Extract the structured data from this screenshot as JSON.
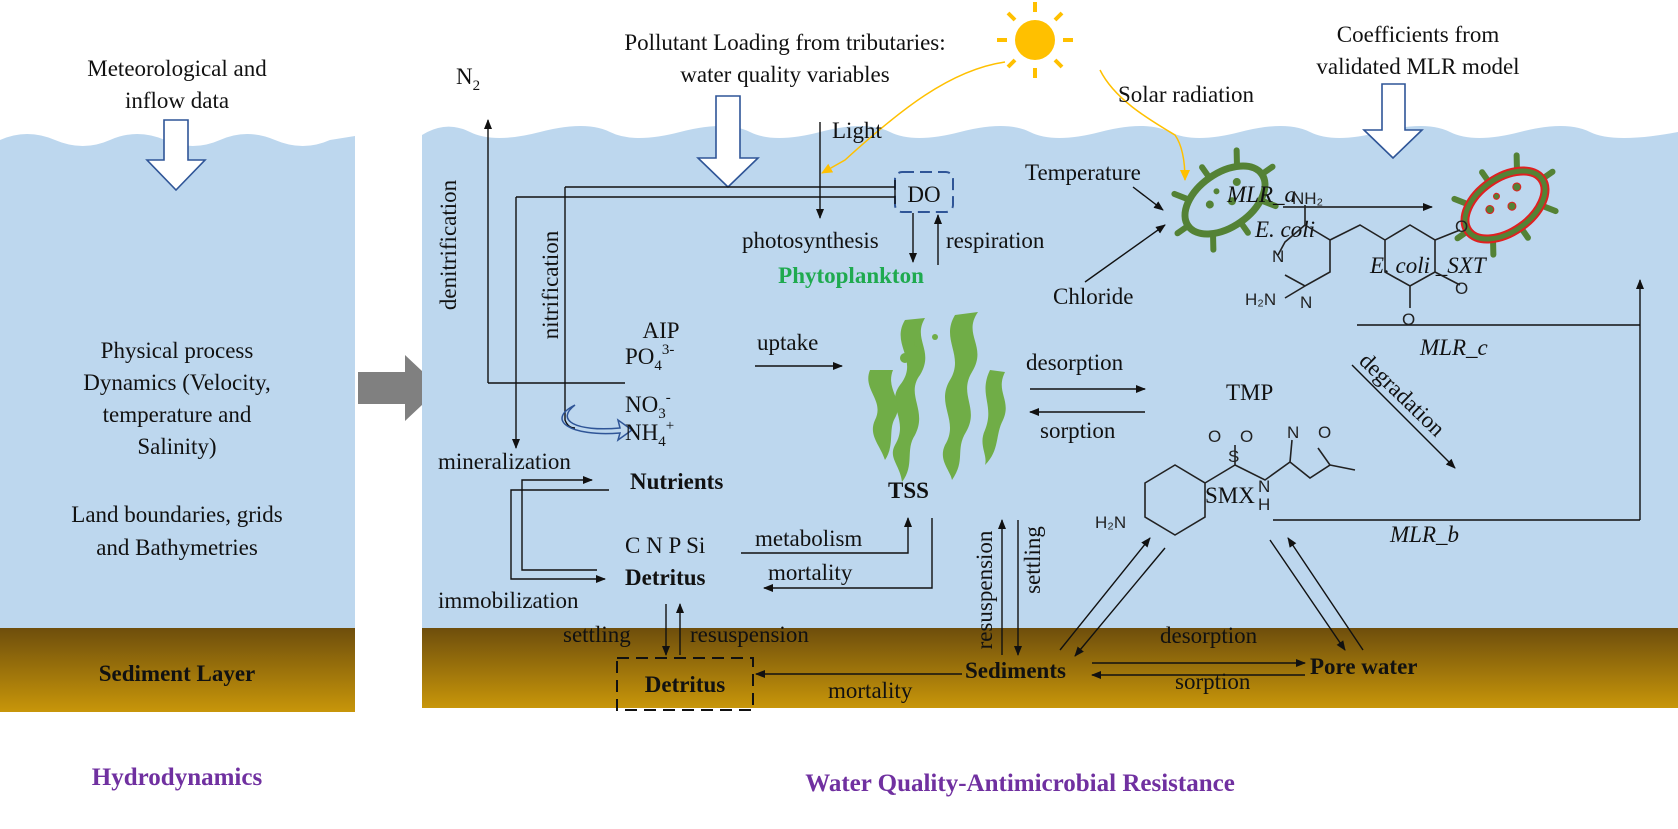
{
  "colors": {
    "water": "#bdd7ee",
    "sediment_top": "#6e4e0c",
    "sediment_bottom": "#c8960a",
    "title": "#7030a0",
    "phytoplankton": "#1faa4f",
    "ecoli": "#548235",
    "ecoli_sxt_outline": "#e02020",
    "sun": "#ffc000",
    "do_box": "#2f5597",
    "algae": "#70ad47"
  },
  "hydro": {
    "input_line1": "Meteorological and",
    "input_line2": "inflow data",
    "process_line1": "Physical process",
    "process_line2": "Dynamics (Velocity,",
    "process_line3": "temperature and",
    "process_line4": "Salinity)",
    "grid_line1": "Land boundaries, grids",
    "grid_line2": "and Bathymetries",
    "sediment": "Sediment Layer",
    "title": "Hydrodynamics"
  },
  "wq": {
    "title": "Water Quality-Antimicrobial Resistance",
    "loading_line1": "Pollutant Loading from tributaries:",
    "loading_line2": "water quality variables",
    "coef_line1": "Coefficients from",
    "coef_line2": "validated MLR model",
    "n2": "N",
    "n2_sub": "2",
    "solar": "Solar radiation",
    "light": "Light",
    "do": "DO",
    "photosynthesis": "photosynthesis",
    "respiration": "respiration",
    "phytoplankton": "Phytoplankton",
    "temperature": "Temperature",
    "chloride": "Chloride",
    "ecoli": "E. coli",
    "ecoli_sxt": "E. coli _SXT",
    "mlr_a": "MLR_a",
    "mlr_b": "MLR_b",
    "mlr_c": "MLR_c",
    "denitrification": "denitrification",
    "nitrification": "nitrification",
    "aip": "AIP",
    "po4": "PO",
    "po4_sub": "4",
    "po4_sup": "3-",
    "no3": "NO",
    "no3_sub": "3",
    "no3_sup": "-",
    "nh4": "NH",
    "nh4_sub": "4",
    "nh4_sup": "+",
    "uptake": "uptake",
    "mineralization": "mineralization",
    "nutrients": "Nutrients",
    "immobilization": "immobilization",
    "cnpsi": "C N P Si",
    "detritus": "Detritus",
    "metabolism": "metabolism",
    "mortality": "mortality",
    "tss": "TSS",
    "desorption": "desorption",
    "sorption": "sorption",
    "tmp": "TMP",
    "smx": "SMX",
    "degradation": "degradation",
    "settling": "settling",
    "resuspension": "resuspension",
    "sed_detritus": "Detritus",
    "sediments": "Sediments",
    "sed_mortality": "mortality",
    "sed_desorption": "desorption",
    "sed_sorption": "sorption",
    "pore_water": "Pore water",
    "tss_resuspension": "resuspension",
    "tss_settling": "settling",
    "mol": {
      "nh2": "NH₂",
      "h2n": "H₂N",
      "n": "N",
      "o": "O",
      "s": "S",
      "h": "H"
    }
  }
}
